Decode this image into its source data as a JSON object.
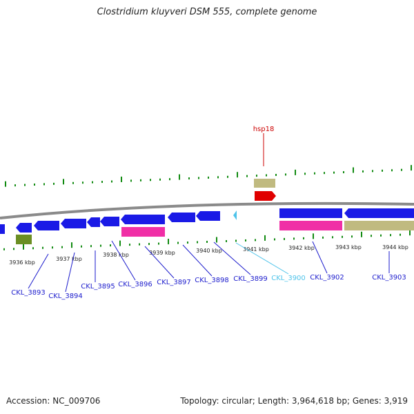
{
  "title": "Clostridium kluyveri DSM 555, complete genome",
  "footer": {
    "accession": "Accession: NC_009706",
    "topology": "Topology: circular; Length: 3,964,618 bp; Genes: 3,919"
  },
  "colors": {
    "backbone": "#8a8a8a",
    "cds": "#1a1ae6",
    "cds_highlight": "#4ec3ea",
    "gene": "#c0ba80",
    "rna": "#f02fa6",
    "hsp": "#e00000",
    "olive": "#6b8e23",
    "ticks": "#108a10",
    "labels": "#1a1acc",
    "hsp_label": "#cc0000"
  },
  "axis": {
    "unit": "kbp",
    "ticks": [
      "3936 kbp",
      "3937 kbp",
      "3938 kbp",
      "3939 kbp",
      "3940 kbp",
      "3941 kbp",
      "3942 kbp",
      "3943 kbp",
      "3944 kbp"
    ]
  },
  "labels": [
    {
      "text": "CKL_3893",
      "color": "labels"
    },
    {
      "text": "CKL_3894",
      "color": "labels"
    },
    {
      "text": "CKL_3895",
      "color": "labels"
    },
    {
      "text": "CKL_3896",
      "color": "labels"
    },
    {
      "text": "CKL_3897",
      "color": "labels"
    },
    {
      "text": "CKL_3898",
      "color": "labels"
    },
    {
      "text": "CKL_3899",
      "color": "labels"
    },
    {
      "text": "CKL_3900",
      "color": "cds_highlight"
    },
    {
      "text": "CKL_3902",
      "color": "labels"
    },
    {
      "text": "CKL_3903",
      "color": "labels"
    }
  ],
  "hsp_label": "hsp18"
}
